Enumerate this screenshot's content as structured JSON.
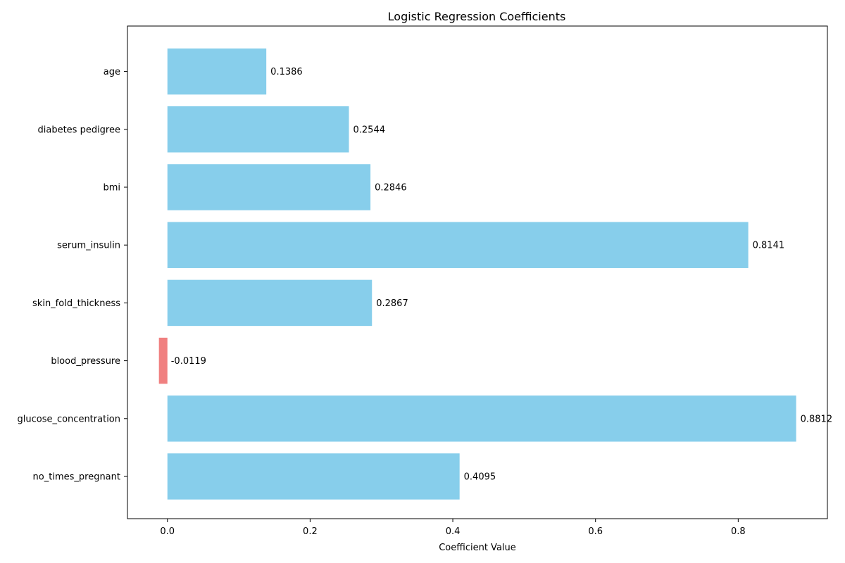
{
  "chart_data": {
    "type": "bar",
    "orientation": "horizontal",
    "title": "Logistic Regression Coefficients",
    "xlabel": "Coefficient Value",
    "ylabel": "",
    "categories": [
      "no_times_pregnant",
      "glucose_concentration",
      "blood_pressure",
      "skin_fold_thickness",
      "serum_insulin",
      "bmi",
      "diabetes pedigree",
      "age"
    ],
    "values": [
      0.4095,
      0.8812,
      -0.0119,
      0.2867,
      0.8141,
      0.2846,
      0.2544,
      0.1386
    ],
    "value_labels": [
      "0.4095",
      "0.8812",
      "-0.0119",
      "0.2867",
      "0.8141",
      "0.2846",
      "0.2544",
      "0.1386"
    ],
    "xlim": [
      -0.056,
      0.925
    ],
    "xticks": [
      0.0,
      0.2,
      0.4,
      0.6,
      0.8
    ],
    "xtick_labels": [
      "0.0",
      "0.2",
      "0.4",
      "0.6",
      "0.8"
    ],
    "colors": {
      "positive": "#87CEEB",
      "negative": "#F08080"
    },
    "grid": false,
    "legend": "none"
  }
}
